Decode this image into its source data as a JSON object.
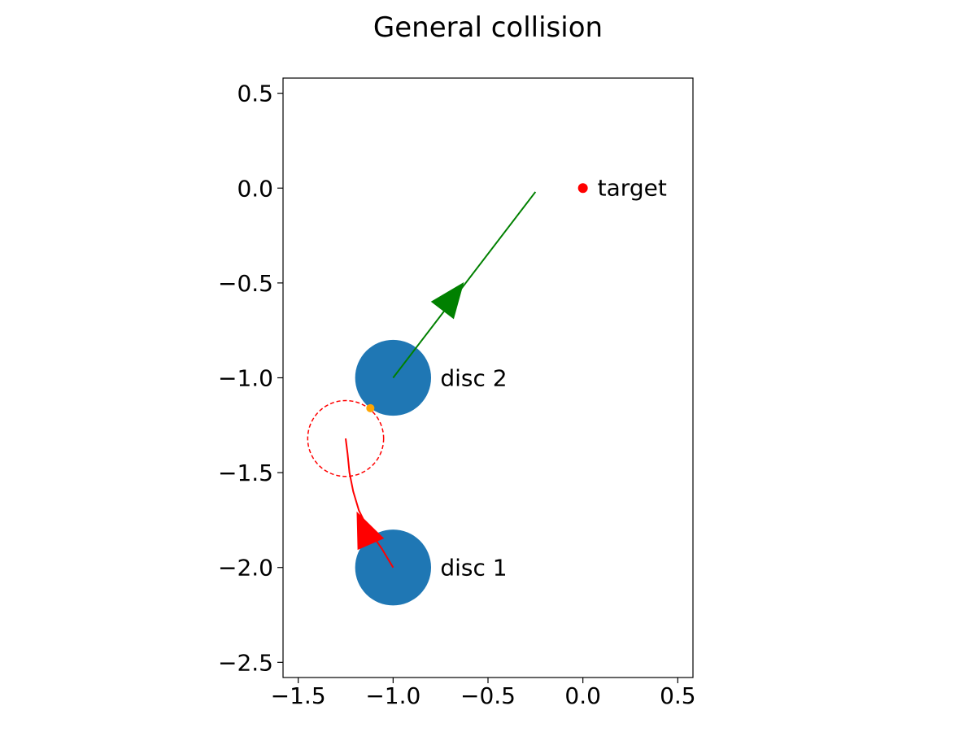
{
  "chart_data": {
    "type": "scatter",
    "title": "General collision",
    "xlabel": "",
    "ylabel": "",
    "xlim": [
      -1.58,
      0.58
    ],
    "ylim": [
      -2.58,
      0.58
    ],
    "x_ticks": [
      -1.5,
      -1.0,
      -0.5,
      0.0,
      0.5
    ],
    "x_tick_labels": [
      "−1.5",
      "−1.0",
      "−0.5",
      "0.0",
      "0.5"
    ],
    "y_ticks": [
      0.5,
      0.0,
      -0.5,
      -1.0,
      -1.5,
      -2.0,
      -2.5
    ],
    "y_tick_labels": [
      "0.5",
      "0.0",
      "−0.5",
      "−1.0",
      "−1.5",
      "−2.0",
      "−2.5"
    ],
    "grid": false,
    "discs": [
      {
        "label": "disc 1",
        "x": -1.0,
        "y": -2.0,
        "radius": 0.2,
        "color": "#1f77b4"
      },
      {
        "label": "disc 2",
        "x": -1.0,
        "y": -1.0,
        "radius": 0.2,
        "color": "#1f77b4"
      }
    ],
    "target": {
      "label": "target",
      "x": 0.0,
      "y": 0.0,
      "color": "#ff0000"
    },
    "disc2_path": {
      "color": "#008000",
      "x": [
        -1.0,
        -0.25
      ],
      "y": [
        -1.0,
        -0.02
      ],
      "arrow_at": [
        -0.63,
        -0.5
      ]
    },
    "disc1_path": {
      "color": "#ff0000",
      "x": [
        -1.0,
        -1.06,
        -1.13,
        -1.18,
        -1.21,
        -1.23,
        -1.24,
        -1.25
      ],
      "y": [
        -2.0,
        -1.9,
        -1.8,
        -1.7,
        -1.6,
        -1.5,
        -1.4,
        -1.32
      ],
      "arrow_at": [
        -1.19,
        -1.71
      ]
    },
    "contact_circle": {
      "x": -1.25,
      "y": -1.32,
      "radius": 0.2,
      "color": "#ff0000",
      "style": "dashed"
    },
    "contact_point": {
      "x": -1.12,
      "y": -1.16,
      "color": "#ffa500"
    }
  }
}
